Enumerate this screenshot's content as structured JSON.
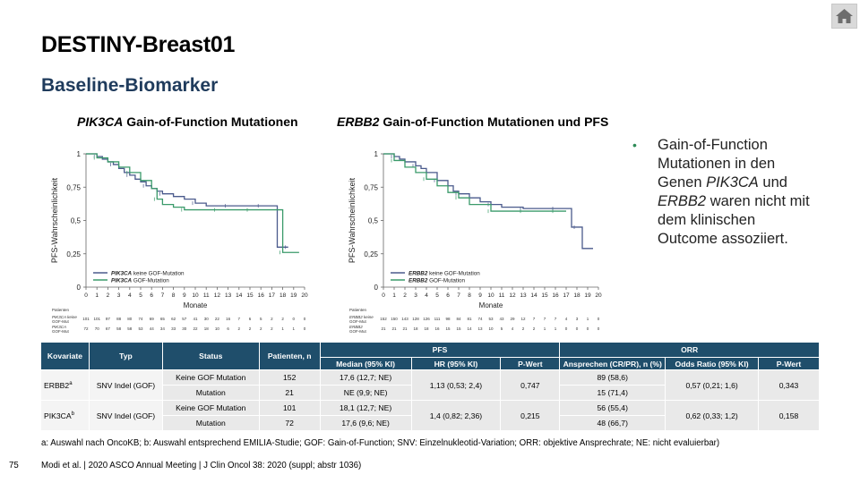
{
  "title": "DESTINY-Breast01",
  "subtitle": "Baseline-Biomarker",
  "page_number": "75",
  "citation": "Modi et al. | 2020 ASCO Annual Meeting | J Clin Oncol 38: 2020 (suppl; abstr 1036)",
  "footnote": "a: Auswahl nach OncoKB; b: Auswahl entsprechend EMILIA-Studie; GOF: Gain-of-Function; SNV:  Einzelnukleotid-Variation; ORR: objektive Ansprechrate; NE: nicht evaluierbar)",
  "bullet": {
    "p1": "Gain-of-Function Mutationen in den Genen ",
    "g1": "PIK3CA",
    "p2": " und ",
    "g2": "ERBB2",
    "p3": " waren nicht mit dem klinischen Outcome assoziiert."
  },
  "colors": {
    "series_no_gof": "#4a5a8c",
    "series_gof": "#3a9a6a",
    "header_bg": "#1f4e6b"
  },
  "home_icon": "home-icon",
  "chart_data": [
    {
      "type": "line",
      "title_gene": "PIK3CA",
      "title_rest": " Gain-of-Function Mutationen",
      "xlabel": "Monate",
      "ylabel": "PFS-Wahrscheinlichkeit",
      "xlim": [
        0,
        20
      ],
      "ylim": [
        0,
        1
      ],
      "xticks": [
        "0",
        "1",
        "2",
        "3",
        "4",
        "5",
        "6",
        "7",
        "8",
        "9",
        "10",
        "11",
        "12",
        "13",
        "14",
        "15",
        "16",
        "17",
        "18",
        "19",
        "20"
      ],
      "yticks": [
        "0",
        "0,25",
        "0,5",
        "0,75",
        "1"
      ],
      "legend_position": "bottom-left",
      "series": [
        {
          "name_gene": "PIK3CA",
          "name_rest": " keine GOF-Mutation",
          "color": "#4a5a8c",
          "x": [
            0,
            1,
            1.5,
            2,
            2.5,
            3,
            3.5,
            4,
            4.5,
            5,
            5.5,
            6,
            6.5,
            7,
            8,
            9,
            10,
            11,
            12,
            13,
            14,
            15,
            16,
            17,
            17.5,
            18.5
          ],
          "y": [
            1,
            0.98,
            0.96,
            0.94,
            0.92,
            0.89,
            0.86,
            0.84,
            0.81,
            0.79,
            0.76,
            0.74,
            0.72,
            0.7,
            0.68,
            0.66,
            0.63,
            0.61,
            0.61,
            0.61,
            0.61,
            0.61,
            0.61,
            0.61,
            0.3,
            0.3
          ]
        },
        {
          "name_gene": "PIK3CA",
          "name_rest": " GOF-Mutation",
          "color": "#3a9a6a",
          "x": [
            0,
            1,
            2,
            3,
            4,
            5,
            6,
            6.5,
            7,
            8,
            9,
            10,
            11,
            12,
            13,
            14,
            15,
            16,
            17,
            18,
            19.5
          ],
          "y": [
            1,
            0.97,
            0.94,
            0.9,
            0.86,
            0.8,
            0.74,
            0.66,
            0.62,
            0.6,
            0.58,
            0.58,
            0.58,
            0.58,
            0.58,
            0.58,
            0.58,
            0.58,
            0.58,
            0.26,
            0.26
          ]
        }
      ],
      "risk_table": {
        "header": "Patienten",
        "rows": [
          {
            "l1": "PIK3CA keine",
            "l2": "GOF-Mut",
            "values": [
              "101",
              "101",
              "97",
              "88",
              "80",
              "74",
              "69",
              "65",
              "62",
              "57",
              "41",
              "30",
              "22",
              "16",
              "7",
              "6",
              "5",
              "2",
              "2",
              "0",
              "0"
            ]
          },
          {
            "l1": "PIK3CA",
            "l2": "GOF-Mut",
            "values": [
              "72",
              "70",
              "67",
              "58",
              "58",
              "53",
              "44",
              "34",
              "33",
              "30",
              "22",
              "18",
              "10",
              "6",
              "2",
              "2",
              "2",
              "2",
              "1",
              "1",
              "0"
            ]
          }
        ]
      }
    },
    {
      "type": "line",
      "title_gene": "ERBB2",
      "title_rest": " Gain-of-Function Mutationen und PFS",
      "xlabel": "Monate",
      "ylabel": "PFS-Wahrscheinlichkeit",
      "xlim": [
        0,
        20
      ],
      "ylim": [
        0,
        1
      ],
      "xticks": [
        "0",
        "1",
        "2",
        "3",
        "4",
        "5",
        "6",
        "7",
        "8",
        "9",
        "10",
        "11",
        "12",
        "13",
        "14",
        "15",
        "16",
        "17",
        "18",
        "19",
        "20"
      ],
      "yticks": [
        "0",
        "0,25",
        "0,5",
        "0,75",
        "1"
      ],
      "legend_position": "bottom-left",
      "series": [
        {
          "name_gene": "ERBB2",
          "name_rest": " keine GOF-Mutation",
          "color": "#4a5a8c",
          "x": [
            0,
            1,
            1.5,
            2,
            3,
            3.5,
            4,
            5,
            6,
            6.5,
            7,
            8,
            9,
            10,
            11,
            12,
            13,
            14,
            15,
            16,
            17,
            17.5,
            18,
            18.5,
            19.5
          ],
          "y": [
            1,
            0.98,
            0.96,
            0.94,
            0.91,
            0.89,
            0.86,
            0.8,
            0.76,
            0.72,
            0.7,
            0.67,
            0.64,
            0.62,
            0.6,
            0.6,
            0.59,
            0.59,
            0.59,
            0.59,
            0.59,
            0.45,
            0.45,
            0.29,
            0.29
          ]
        },
        {
          "name_gene": "ERBB2",
          "name_rest": " GOF-Mutation",
          "color": "#3a9a6a",
          "x": [
            0,
            1,
            2,
            3,
            4,
            5,
            6,
            7,
            8,
            9,
            10,
            11,
            12,
            13,
            14,
            15,
            16,
            17
          ],
          "y": [
            1,
            0.95,
            0.9,
            0.86,
            0.81,
            0.76,
            0.71,
            0.67,
            0.62,
            0.62,
            0.57,
            0.57,
            0.57,
            0.57,
            0.57,
            0.57,
            0.57,
            0.57
          ]
        }
      ],
      "risk_table": {
        "header": "Patienten",
        "rows": [
          {
            "l1": "ERBB2 keine",
            "l2": "GOF-Mut",
            "values": [
              "152",
              "150",
              "143",
              "128",
              "126",
              "111",
              "98",
              "84",
              "81",
              "74",
              "53",
              "43",
              "29",
              "12",
              "7",
              "7",
              "7",
              "4",
              "3",
              "1",
              "0"
            ]
          },
          {
            "l1": "ERBB2",
            "l2": "GOF-Mut",
            "values": [
              "21",
              "21",
              "21",
              "18",
              "18",
              "16",
              "15",
              "15",
              "14",
              "13",
              "10",
              "5",
              "4",
              "2",
              "2",
              "1",
              "1",
              "0",
              "0",
              "0",
              "0"
            ]
          }
        ]
      }
    }
  ],
  "table": {
    "headers": {
      "kovariate": "Kovariate",
      "typ": "Typ",
      "status": "Status",
      "patienten": "Patienten, n",
      "pfs": "PFS",
      "orr": "ORR",
      "median": "Median (95% KI)",
      "hr": "HR (95% KI)",
      "pwert_pfs": "P-Wert",
      "ansprechen": "Ansprechen (CR/PR), n (%)",
      "odds": "Odds Ratio (95% KI)",
      "pwert_orr": "P-Wert"
    },
    "groups": [
      {
        "kovariate": "ERBB2",
        "sup": "a",
        "typ": "SNV Indel (GOF)",
        "hr": "1,13 (0,53; 2,4)",
        "pwert_pfs": "0,747",
        "odds": "0,57 (0,21; 1,6)",
        "pwert_orr": "0,343",
        "rows": [
          {
            "status": "Keine GOF Mutation",
            "n": "152",
            "median": "17,6 (12,7; NE)",
            "ansprechen": "89 (58,6)"
          },
          {
            "status": "Mutation",
            "n": "21",
            "median": "NE (9,9; NE)",
            "ansprechen": "15 (71,4)"
          }
        ]
      },
      {
        "kovariate": "PIK3CA",
        "sup": "b",
        "typ": "SNV Indel (GOF)",
        "hr": "1,4 (0,82; 2,36)",
        "pwert_pfs": "0,215",
        "odds": "0,62 (0,33; 1,2)",
        "pwert_orr": "0,158",
        "rows": [
          {
            "status": "Keine GOF Mutation",
            "n": "101",
            "median": "18,1 (12,7; NE)",
            "ansprechen": "56 (55,4)"
          },
          {
            "status": "Mutation",
            "n": "72",
            "median": "17,6 (9,6; NE)",
            "ansprechen": "48 (66,7)"
          }
        ]
      }
    ]
  }
}
